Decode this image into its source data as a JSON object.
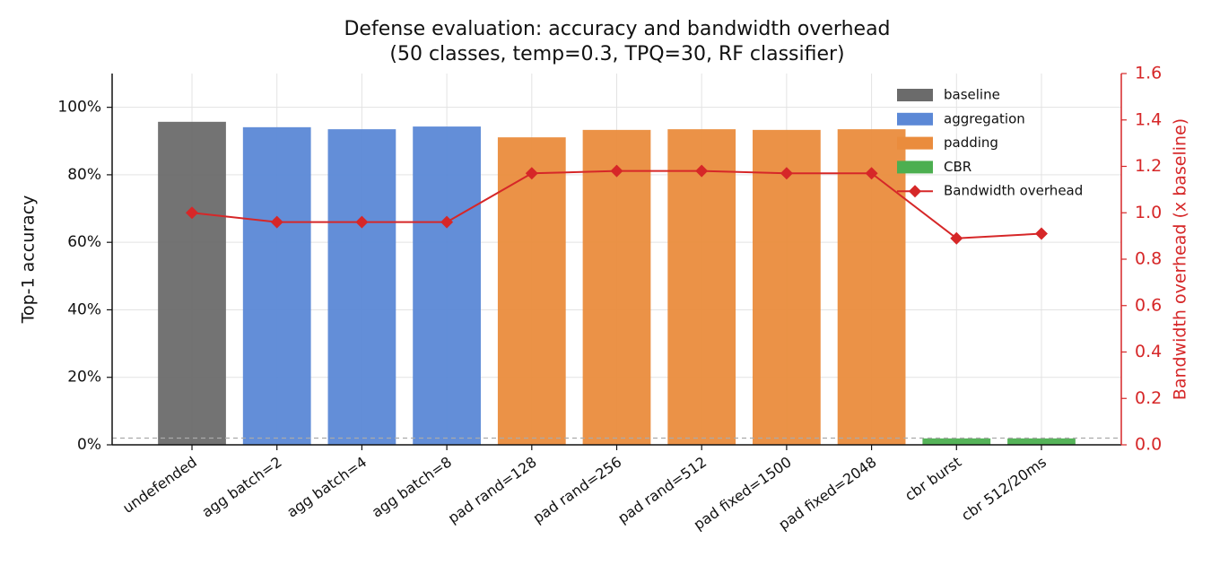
{
  "chart_data": {
    "type": "bar",
    "title": "Defense evaluation: accuracy and bandwidth overhead",
    "subtitle": "(50 classes, temp=0.3, TPQ=30, RF classifier)",
    "y_label": "Top-1 accuracy",
    "y2_label": "Bandwidth overhead (x baseline)",
    "categories": [
      "undefended",
      "agg batch=2",
      "agg batch=4",
      "agg batch=8",
      "pad rand=128",
      "pad rand=256",
      "pad rand=512",
      "pad fixed=1500",
      "pad fixed=2048",
      "cbr burst",
      "cbr 512/20ms"
    ],
    "series": [
      {
        "name": "baseline",
        "color": "#6b6b6b",
        "values": [
          95.7,
          null,
          null,
          null,
          null,
          null,
          null,
          null,
          null,
          null,
          null
        ]
      },
      {
        "name": "aggregation",
        "color": "#5b88d6",
        "values": [
          null,
          94.1,
          93.5,
          94.3,
          null,
          null,
          null,
          null,
          null,
          null,
          null
        ]
      },
      {
        "name": "padding",
        "color": "#ea8c3d",
        "values": [
          null,
          null,
          null,
          null,
          91.1,
          93.3,
          93.5,
          93.3,
          93.5,
          null,
          null
        ]
      },
      {
        "name": "CBR",
        "color": "#4caf50",
        "values": [
          null,
          null,
          null,
          null,
          null,
          null,
          null,
          null,
          null,
          1.9,
          1.9
        ]
      },
      {
        "name": "Bandwidth overhead",
        "color": "#d62728",
        "type": "line",
        "axis": "y2",
        "values": [
          1.0,
          0.96,
          0.96,
          0.96,
          1.17,
          1.18,
          1.18,
          1.17,
          1.17,
          0.89,
          0.91
        ]
      }
    ],
    "chance_line": 2,
    "ylim": [
      0,
      110
    ],
    "yticks": [
      {
        "value": 0,
        "label": "0%"
      },
      {
        "value": 20,
        "label": "20%"
      },
      {
        "value": 40,
        "label": "40%"
      },
      {
        "value": 60,
        "label": "60%"
      },
      {
        "value": 80,
        "label": "80%"
      },
      {
        "value": 100,
        "label": "100%"
      }
    ],
    "y2lim": [
      0,
      1.6
    ],
    "y2ticks": [
      {
        "value": 0,
        "label": "0.0"
      },
      {
        "value": 0.2,
        "label": "0.2"
      },
      {
        "value": 0.4,
        "label": "0.4"
      },
      {
        "value": 0.6,
        "label": "0.6"
      },
      {
        "value": 0.8,
        "label": "0.8"
      },
      {
        "value": 1.0,
        "label": "1.0"
      },
      {
        "value": 1.2,
        "label": "1.2"
      },
      {
        "value": 1.4,
        "label": "1.4"
      },
      {
        "value": 1.6,
        "label": "1.6"
      }
    ],
    "y2_color": "#d62728",
    "grid": true,
    "legend": "upper right"
  }
}
